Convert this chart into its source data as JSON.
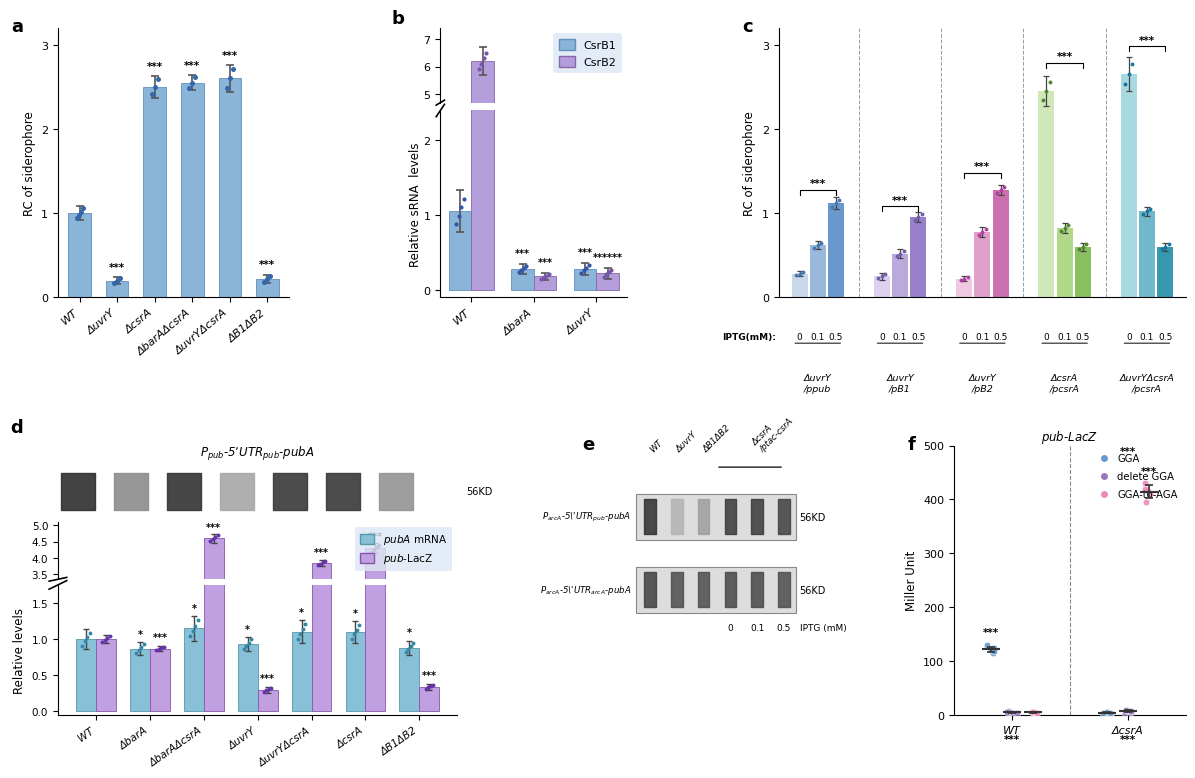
{
  "panel_a": {
    "categories": [
      "WT",
      "ΔuvrY",
      "ΔcsrA",
      "ΔbarAΔcsrA",
      "ΔuvrYΔcsrA",
      "ΔB1ΔB2"
    ],
    "values": [
      1.0,
      0.2,
      2.5,
      2.55,
      2.6,
      0.22
    ],
    "errors": [
      0.08,
      0.04,
      0.13,
      0.09,
      0.16,
      0.05
    ],
    "color": "#8ab4d8",
    "ylabel": "RC of siderophore",
    "ylim": [
      0,
      3.2
    ],
    "yticks": [
      0,
      1,
      2,
      3
    ],
    "sig": [
      "",
      "***",
      "***",
      "***",
      "***",
      "***"
    ]
  },
  "panel_b": {
    "categories": [
      "WT",
      "ΔbarA",
      "ΔuvrY"
    ],
    "values_b1": [
      1.05,
      0.28,
      0.28
    ],
    "values_b2": [
      6.2,
      0.18,
      0.22
    ],
    "errors_b1": [
      0.28,
      0.07,
      0.08
    ],
    "errors_b2": [
      0.5,
      0.05,
      0.07
    ],
    "color_b1": "#8ab4d8",
    "color_b2": "#b39ddb",
    "ylabel": "Relative sRNA  levels",
    "sig_b1": [
      "",
      "***",
      "***"
    ],
    "sig_b2": [
      "",
      "***",
      "******"
    ]
  },
  "panel_c": {
    "groups": [
      {
        "label": "ΔuvrY\n/ppub",
        "colors": [
          "#c8d8ec",
          "#9ab8dc",
          "#6898cc"
        ],
        "dot_color": "#4878b0"
      },
      {
        "label": "ΔuvrY\n/pB1",
        "colors": [
          "#ddd0ee",
          "#bba8dd",
          "#9980cc"
        ],
        "dot_color": "#7060a8"
      },
      {
        "label": "ΔuvrY\n/pB2",
        "colors": [
          "#f0c8e0",
          "#e0a0cc",
          "#cc70b0"
        ],
        "dot_color": "#b040a0"
      },
      {
        "label": "ΔcsrA\n/pcsrA",
        "colors": [
          "#d0e8b8",
          "#b0d888",
          "#88c060"
        ],
        "dot_color": "#508830"
      },
      {
        "label": "ΔuvrYΔcsrA\n/pcsrA",
        "colors": [
          "#a8d8e0",
          "#70b8cc",
          "#3898b0"
        ],
        "dot_color": "#1878a0"
      }
    ],
    "values": [
      [
        0.28,
        0.62,
        1.12
      ],
      [
        0.25,
        0.52,
        0.95
      ],
      [
        0.22,
        0.78,
        1.28
      ],
      [
        2.45,
        0.82,
        0.6
      ],
      [
        2.65,
        1.02,
        0.6
      ]
    ],
    "errors": [
      [
        0.03,
        0.05,
        0.07
      ],
      [
        0.04,
        0.05,
        0.06
      ],
      [
        0.03,
        0.06,
        0.06
      ],
      [
        0.18,
        0.06,
        0.05
      ],
      [
        0.2,
        0.05,
        0.05
      ]
    ],
    "iptg_labels": [
      "0",
      "0.1",
      "0.5"
    ],
    "ylabel": "RC of siderophore",
    "ylim": [
      0,
      3.2
    ],
    "yticks": [
      0,
      1,
      2,
      3
    ],
    "sig_bracket_y": [
      1.28,
      1.08,
      1.48,
      2.78,
      2.98
    ],
    "sig": [
      "***",
      "***",
      "***",
      "***",
      "***"
    ]
  },
  "panel_d": {
    "categories": [
      "WT",
      "ΔbarA",
      "ΔbarAΔcsrA",
      "ΔuvrY",
      "ΔuvrYΔcsrA",
      "ΔcsrA",
      "ΔB1ΔB2"
    ],
    "values_mrna": [
      1.0,
      0.87,
      1.15,
      0.93,
      1.1,
      1.1,
      0.88
    ],
    "values_lacz": [
      1.0,
      0.87,
      4.6,
      0.3,
      3.85,
      4.3,
      0.34
    ],
    "errors_mrna": [
      0.14,
      0.09,
      0.17,
      0.1,
      0.16,
      0.15,
      0.1
    ],
    "errors_lacz": [
      0.06,
      0.04,
      0.14,
      0.04,
      0.1,
      0.16,
      0.04
    ],
    "color_mrna": "#88c0d8",
    "color_lacz": "#c0a0e0",
    "ylabel": "Relative levels",
    "sig_mrna": [
      "",
      "*",
      "*",
      "*",
      "*",
      "*",
      "*"
    ],
    "sig_lacz": [
      "",
      "***",
      "***",
      "***",
      "***",
      "***",
      "***"
    ],
    "title": "P$_{pub}$-5’UTR$_{pub}$-$pubA$"
  },
  "panel_f": {
    "categories": [
      "WT",
      "ΔcsrA"
    ],
    "gga_wt": [
      115,
      120,
      125,
      130,
      118
    ],
    "del_wt": [
      3,
      5,
      7,
      4,
      6
    ],
    "aga_wt": [
      4,
      5,
      6,
      5,
      4
    ],
    "gga_csr": [
      3,
      4,
      5,
      4,
      3
    ],
    "del_csr": [
      4,
      8,
      10,
      6,
      7
    ],
    "aga_csr": [
      395,
      410,
      430,
      415,
      420
    ],
    "mean_gga_wt": 122,
    "err_gga_wt": 5,
    "mean_del_wt": 5,
    "err_del_wt": 1,
    "mean_aga_wt": 5,
    "err_aga_wt": 1,
    "mean_gga_csr": 4,
    "err_gga_csr": 1,
    "mean_del_csr": 7,
    "err_del_csr": 2,
    "mean_aga_csr": 414,
    "err_aga_csr": 12,
    "color_gga": "#6699cc",
    "color_del": "#9977bb",
    "color_aga": "#ee88bb",
    "ylabel": "Miller Unit",
    "ylim": [
      0,
      500
    ],
    "yticks": [
      0,
      100,
      200,
      300,
      400,
      500
    ],
    "title": "pub-LacZ"
  }
}
